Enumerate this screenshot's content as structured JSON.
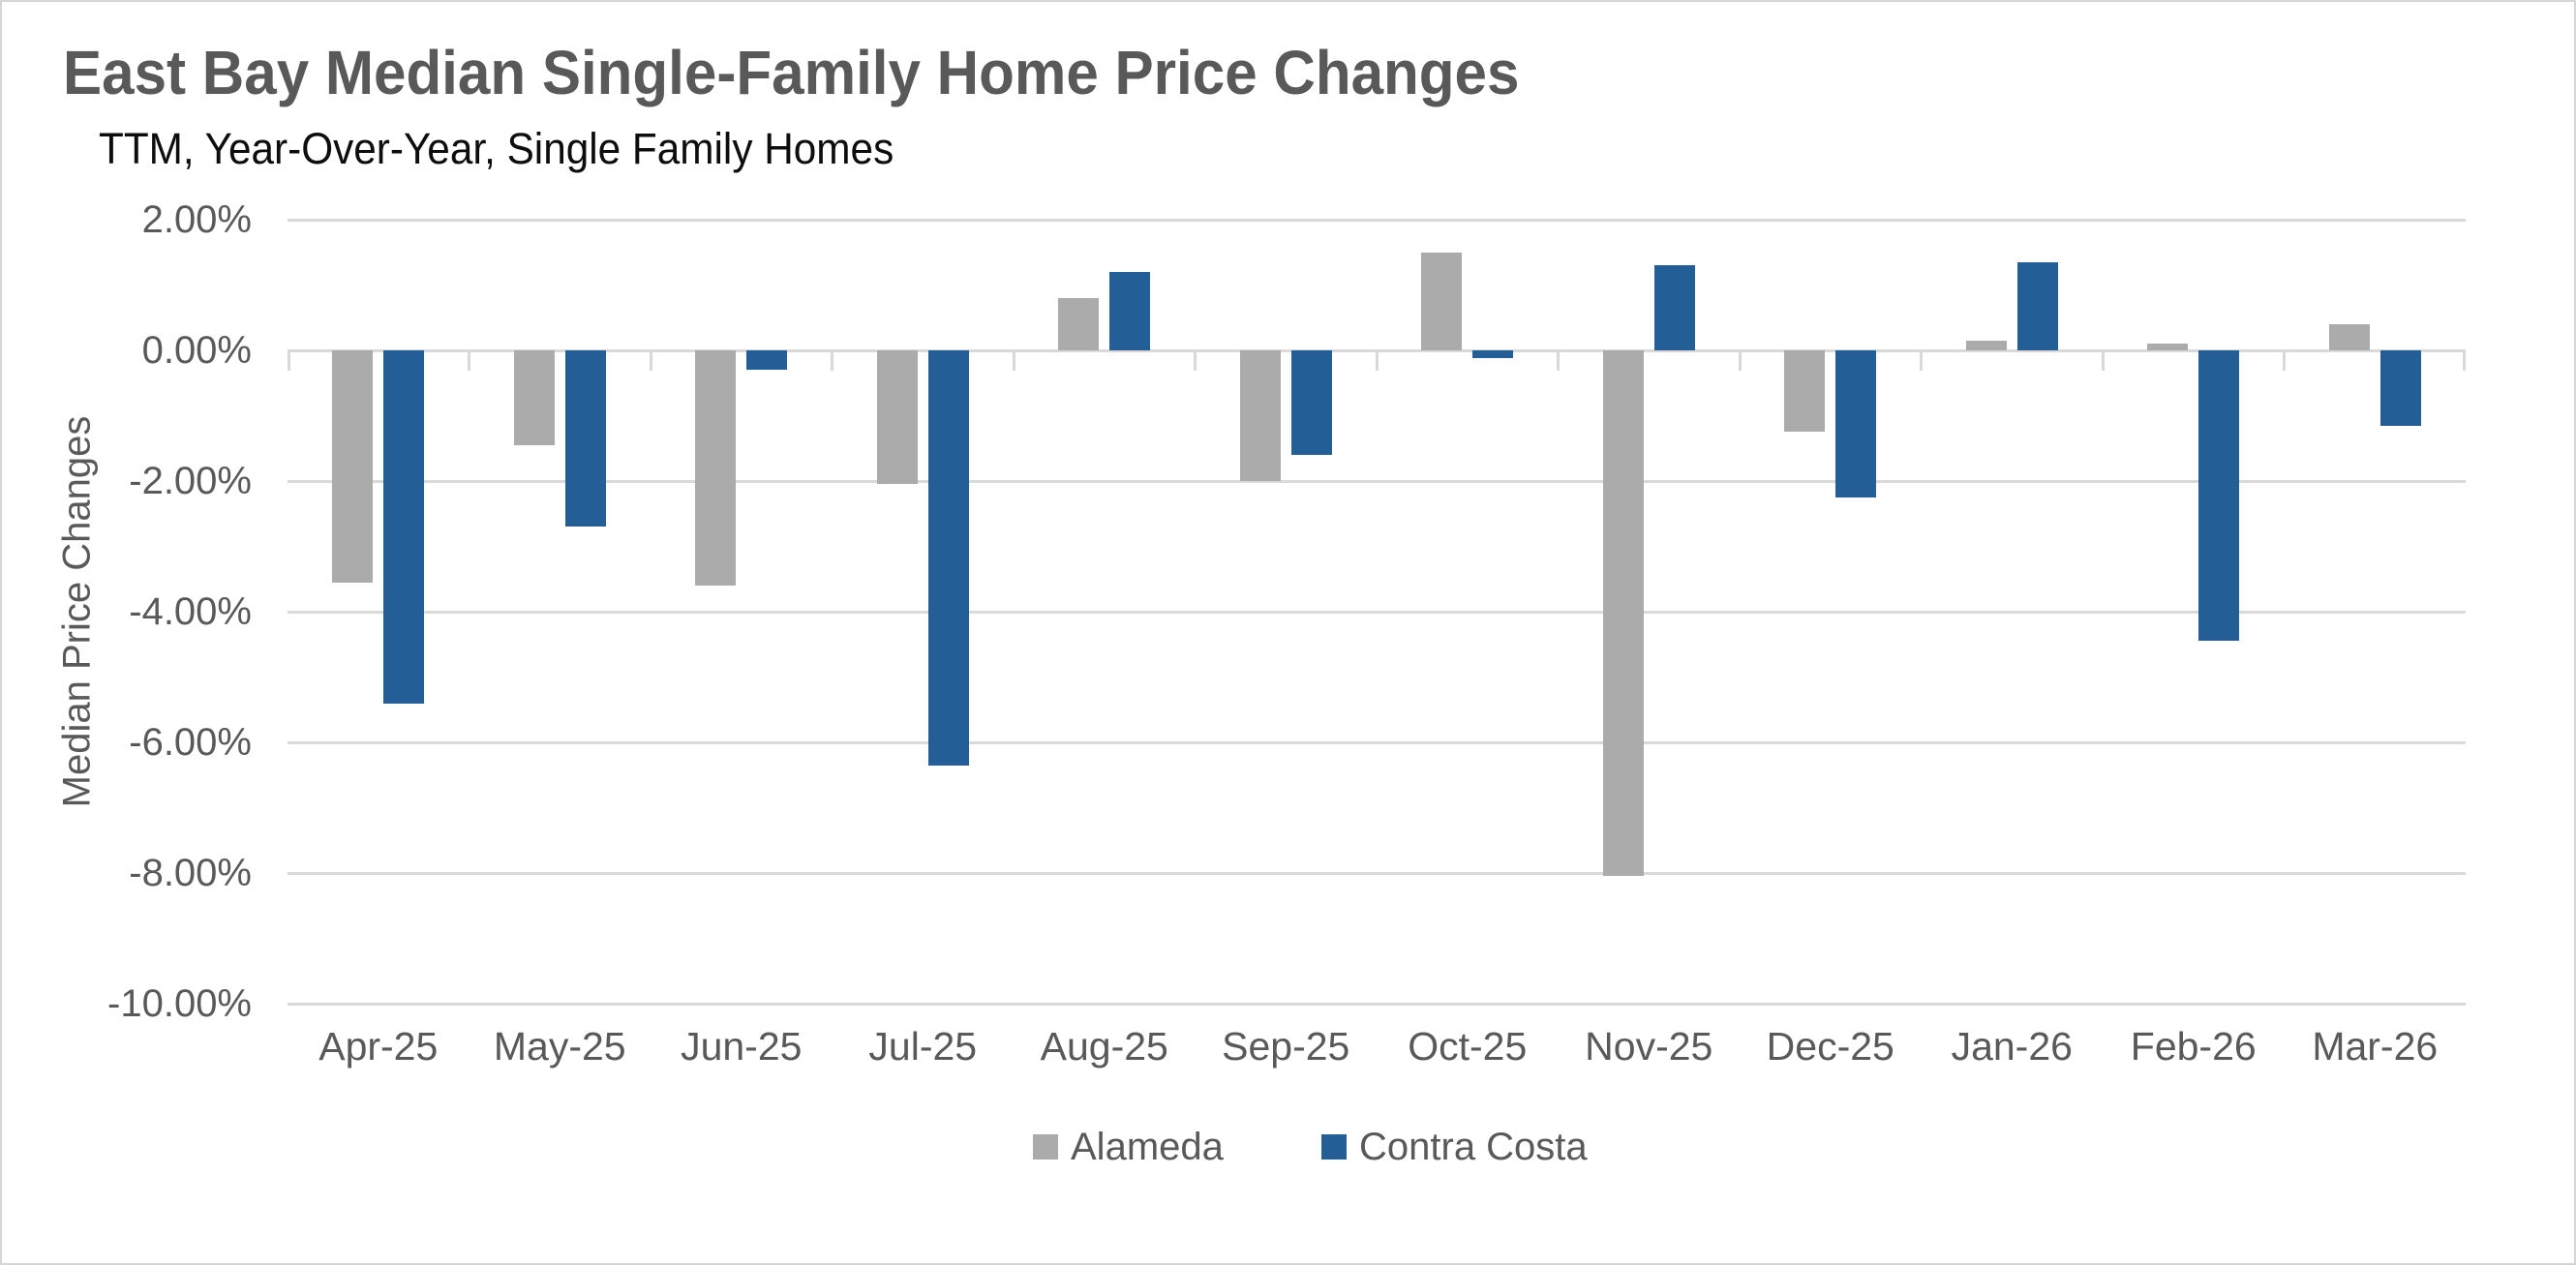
{
  "header": {
    "title": "East Bay Median Single-Family Home Price Changes",
    "subtitle": "TTM, Year-Over-Year, Single Family Homes"
  },
  "chart_data": {
    "type": "bar",
    "title": "East Bay Median Single-Family Home Price Changes",
    "subtitle": "TTM, Year-Over-Year, Single Family Homes",
    "ylabel": "Median Price Changes",
    "xlabel": "",
    "categories": [
      "Apr-25",
      "May-25",
      "Jun-25",
      "Jul-25",
      "Aug-25",
      "Sep-25",
      "Oct-25",
      "Nov-25",
      "Dec-25",
      "Jan-26",
      "Feb-26",
      "Mar-26"
    ],
    "series": [
      {
        "name": "Alameda",
        "color": "#ABABAB",
        "values": [
          -3.55,
          -1.45,
          -3.6,
          -2.05,
          0.8,
          -2.0,
          1.5,
          -8.05,
          -1.25,
          0.15,
          0.1,
          0.4
        ]
      },
      {
        "name": "Contra Costa",
        "color": "#245E96",
        "values": [
          -5.4,
          -2.7,
          -0.3,
          -6.35,
          1.2,
          -1.6,
          -0.12,
          1.3,
          -2.25,
          1.35,
          -4.45,
          -1.15
        ]
      }
    ],
    "y_axis": {
      "tick_labels": [
        "2.00%",
        "0.00%",
        "-2.00%",
        "-4.00%",
        "-6.00%",
        "-8.00%",
        "-10.00%"
      ],
      "tick_values": [
        2,
        0,
        -2,
        -4,
        -6,
        -8,
        -10
      ],
      "min": -10,
      "max": 2,
      "value_format": "percent"
    },
    "grid": true,
    "legend_position": "bottom",
    "legend": [
      "Alameda",
      "Contra Costa"
    ]
  },
  "colors": {
    "title_text": "#595959",
    "subtitle_text": "#0d0d0d",
    "axis_text": "#595959",
    "gridline": "#d9d9d9",
    "alameda_bar": "#ABABAB",
    "contra_costa_bar": "#245E96",
    "canvas_border": "#d6d6d6",
    "background": "#ffffff"
  }
}
